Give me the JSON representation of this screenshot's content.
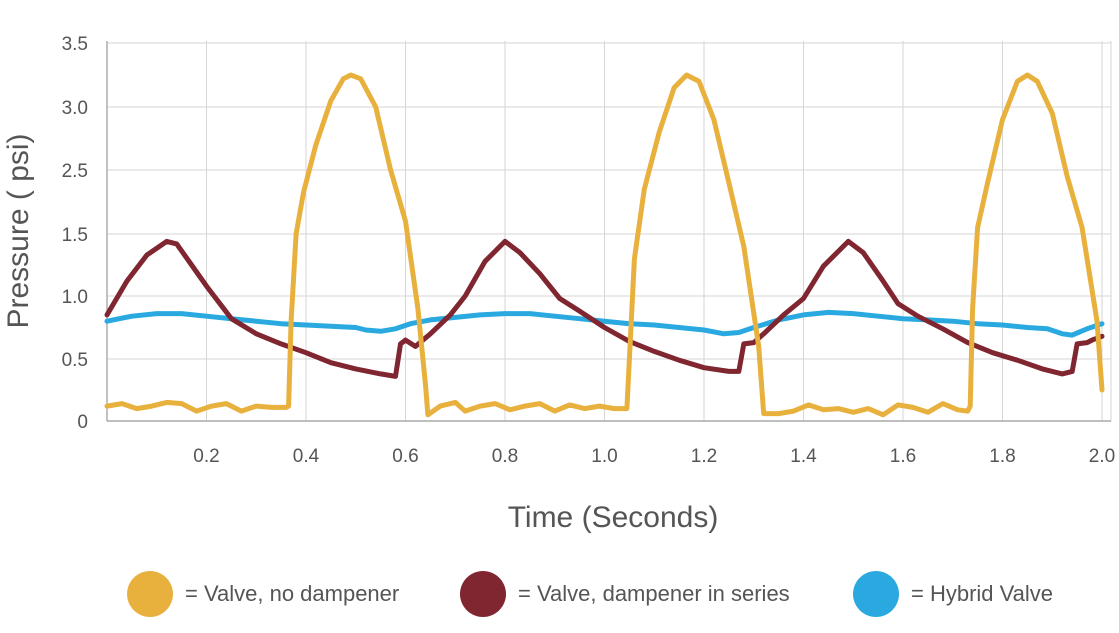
{
  "chart_data": {
    "type": "line",
    "title": "",
    "xlabel": "Time (Seconds)",
    "ylabel": "Pressure ( psi)",
    "xlim": [
      0,
      2.02
    ],
    "x_ticks": [
      0.2,
      0.4,
      0.6,
      0.8,
      1.0,
      1.2,
      1.4,
      1.6,
      1.8,
      2.0
    ],
    "x_tick_labels": [
      "0.2",
      "0.4",
      "0.6",
      "0.8",
      "1.0",
      "1.2",
      "1.4",
      "1.6",
      "1.8",
      "2.0"
    ],
    "y_ticks": [
      0,
      0.5,
      1.0,
      1.5,
      2.5,
      3.0,
      3.5
    ],
    "y_tick_labels": [
      "0",
      "0.5",
      "1.0",
      "1.5",
      "2.5",
      "3.0",
      "3.5"
    ],
    "grid": true,
    "legend_position": "bottom",
    "series": [
      {
        "name": "= Valve, no dampener",
        "color": "#E8B13E",
        "points": [
          [
            0.0,
            0.12
          ],
          [
            0.03,
            0.14
          ],
          [
            0.06,
            0.1
          ],
          [
            0.09,
            0.12
          ],
          [
            0.12,
            0.15
          ],
          [
            0.15,
            0.14
          ],
          [
            0.18,
            0.08
          ],
          [
            0.21,
            0.12
          ],
          [
            0.24,
            0.14
          ],
          [
            0.27,
            0.08
          ],
          [
            0.3,
            0.12
          ],
          [
            0.33,
            0.11
          ],
          [
            0.36,
            0.11
          ],
          [
            0.365,
            0.12
          ],
          [
            0.37,
            0.8
          ],
          [
            0.38,
            1.5
          ],
          [
            0.395,
            2.15
          ],
          [
            0.42,
            2.7
          ],
          [
            0.45,
            3.05
          ],
          [
            0.475,
            3.22
          ],
          [
            0.49,
            3.25
          ],
          [
            0.51,
            3.22
          ],
          [
            0.54,
            3.0
          ],
          [
            0.57,
            2.5
          ],
          [
            0.6,
            1.7
          ],
          [
            0.625,
            0.9
          ],
          [
            0.64,
            0.3
          ],
          [
            0.645,
            0.05
          ],
          [
            0.67,
            0.12
          ],
          [
            0.7,
            0.15
          ],
          [
            0.72,
            0.08
          ],
          [
            0.75,
            0.12
          ],
          [
            0.78,
            0.14
          ],
          [
            0.81,
            0.09
          ],
          [
            0.84,
            0.12
          ],
          [
            0.87,
            0.14
          ],
          [
            0.9,
            0.08
          ],
          [
            0.93,
            0.13
          ],
          [
            0.96,
            0.1
          ],
          [
            0.99,
            0.12
          ],
          [
            1.02,
            0.1
          ],
          [
            1.045,
            0.1
          ],
          [
            1.05,
            0.5
          ],
          [
            1.06,
            1.3
          ],
          [
            1.08,
            2.2
          ],
          [
            1.11,
            2.8
          ],
          [
            1.14,
            3.15
          ],
          [
            1.165,
            3.25
          ],
          [
            1.19,
            3.2
          ],
          [
            1.22,
            2.9
          ],
          [
            1.25,
            2.3
          ],
          [
            1.28,
            1.4
          ],
          [
            1.31,
            0.6
          ],
          [
            1.32,
            0.06
          ],
          [
            1.35,
            0.06
          ],
          [
            1.38,
            0.08
          ],
          [
            1.41,
            0.13
          ],
          [
            1.44,
            0.09
          ],
          [
            1.47,
            0.1
          ],
          [
            1.5,
            0.07
          ],
          [
            1.53,
            0.1
          ],
          [
            1.56,
            0.05
          ],
          [
            1.59,
            0.13
          ],
          [
            1.62,
            0.11
          ],
          [
            1.65,
            0.07
          ],
          [
            1.68,
            0.14
          ],
          [
            1.71,
            0.09
          ],
          [
            1.73,
            0.08
          ],
          [
            1.735,
            0.12
          ],
          [
            1.74,
            0.9
          ],
          [
            1.75,
            1.6
          ],
          [
            1.77,
            2.3
          ],
          [
            1.8,
            2.9
          ],
          [
            1.83,
            3.2
          ],
          [
            1.85,
            3.25
          ],
          [
            1.87,
            3.2
          ],
          [
            1.9,
            2.95
          ],
          [
            1.93,
            2.4
          ],
          [
            1.96,
            1.6
          ],
          [
            1.99,
            0.8
          ],
          [
            2.0,
            0.25
          ]
        ]
      },
      {
        "name": "= Valve, dampener in series",
        "color": "#7F2630",
        "points": [
          [
            0.0,
            0.85
          ],
          [
            0.04,
            1.12
          ],
          [
            0.08,
            1.33
          ],
          [
            0.12,
            1.44
          ],
          [
            0.14,
            1.42
          ],
          [
            0.17,
            1.25
          ],
          [
            0.2,
            1.08
          ],
          [
            0.25,
            0.82
          ],
          [
            0.3,
            0.7
          ],
          [
            0.35,
            0.62
          ],
          [
            0.4,
            0.55
          ],
          [
            0.45,
            0.47
          ],
          [
            0.5,
            0.42
          ],
          [
            0.55,
            0.38
          ],
          [
            0.58,
            0.36
          ],
          [
            0.59,
            0.62
          ],
          [
            0.6,
            0.65
          ],
          [
            0.62,
            0.6
          ],
          [
            0.65,
            0.7
          ],
          [
            0.69,
            0.85
          ],
          [
            0.72,
            1.0
          ],
          [
            0.76,
            1.28
          ],
          [
            0.8,
            1.44
          ],
          [
            0.83,
            1.35
          ],
          [
            0.87,
            1.18
          ],
          [
            0.91,
            0.98
          ],
          [
            0.95,
            0.88
          ],
          [
            1.0,
            0.75
          ],
          [
            1.05,
            0.64
          ],
          [
            1.1,
            0.56
          ],
          [
            1.15,
            0.49
          ],
          [
            1.2,
            0.43
          ],
          [
            1.25,
            0.4
          ],
          [
            1.27,
            0.4
          ],
          [
            1.28,
            0.62
          ],
          [
            1.3,
            0.63
          ],
          [
            1.32,
            0.7
          ],
          [
            1.36,
            0.85
          ],
          [
            1.4,
            0.98
          ],
          [
            1.44,
            1.24
          ],
          [
            1.49,
            1.44
          ],
          [
            1.52,
            1.35
          ],
          [
            1.56,
            1.12
          ],
          [
            1.59,
            0.94
          ],
          [
            1.63,
            0.84
          ],
          [
            1.68,
            0.74
          ],
          [
            1.73,
            0.63
          ],
          [
            1.78,
            0.55
          ],
          [
            1.83,
            0.49
          ],
          [
            1.88,
            0.42
          ],
          [
            1.92,
            0.38
          ],
          [
            1.94,
            0.4
          ],
          [
            1.95,
            0.62
          ],
          [
            1.97,
            0.63
          ],
          [
            1.98,
            0.65
          ],
          [
            2.0,
            0.68
          ]
        ]
      },
      {
        "name": "= Hybrid Valve",
        "color": "#2AA9E0",
        "points": [
          [
            0.0,
            0.8
          ],
          [
            0.05,
            0.84
          ],
          [
            0.1,
            0.86
          ],
          [
            0.15,
            0.86
          ],
          [
            0.2,
            0.84
          ],
          [
            0.25,
            0.82
          ],
          [
            0.3,
            0.8
          ],
          [
            0.35,
            0.78
          ],
          [
            0.4,
            0.77
          ],
          [
            0.45,
            0.76
          ],
          [
            0.5,
            0.75
          ],
          [
            0.52,
            0.73
          ],
          [
            0.55,
            0.72
          ],
          [
            0.58,
            0.74
          ],
          [
            0.61,
            0.78
          ],
          [
            0.65,
            0.81
          ],
          [
            0.7,
            0.83
          ],
          [
            0.75,
            0.85
          ],
          [
            0.8,
            0.86
          ],
          [
            0.85,
            0.86
          ],
          [
            0.9,
            0.84
          ],
          [
            0.95,
            0.82
          ],
          [
            1.0,
            0.8
          ],
          [
            1.05,
            0.78
          ],
          [
            1.1,
            0.77
          ],
          [
            1.15,
            0.75
          ],
          [
            1.2,
            0.73
          ],
          [
            1.24,
            0.7
          ],
          [
            1.27,
            0.71
          ],
          [
            1.3,
            0.75
          ],
          [
            1.35,
            0.81
          ],
          [
            1.4,
            0.85
          ],
          [
            1.45,
            0.87
          ],
          [
            1.5,
            0.86
          ],
          [
            1.55,
            0.84
          ],
          [
            1.6,
            0.82
          ],
          [
            1.65,
            0.81
          ],
          [
            1.7,
            0.8
          ],
          [
            1.75,
            0.78
          ],
          [
            1.8,
            0.77
          ],
          [
            1.85,
            0.75
          ],
          [
            1.89,
            0.74
          ],
          [
            1.92,
            0.7
          ],
          [
            1.94,
            0.69
          ],
          [
            1.97,
            0.74
          ],
          [
            2.0,
            0.78
          ]
        ]
      }
    ]
  }
}
